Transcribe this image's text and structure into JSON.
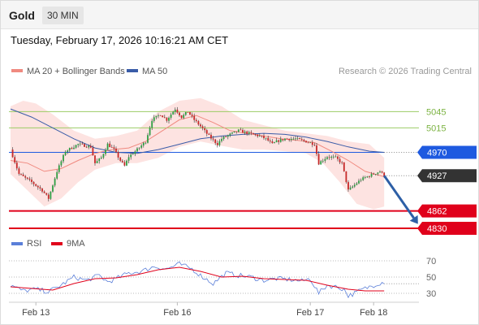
{
  "header": {
    "title": "Gold",
    "timeframe": "30 MIN"
  },
  "datetime": "Tuesday, February 17, 2026 10:16:21 AM CET",
  "legend": {
    "ma20": "MA 20 + Bollinger Bands",
    "ma50": "MA 50",
    "credit": "Research © 2026 Trading Central",
    "rsi": "RSI",
    "nine_ma": "9MA"
  },
  "colors": {
    "ma20": "#f08a80",
    "ma50": "#3a5ca8",
    "bollinger_fill": "#fde3e1",
    "candle_up": "#2e9e43",
    "candle_down": "#c62828",
    "support": "#e0001b",
    "pivot": "#1e5ae0",
    "resistance": "#9ccc65",
    "current_price": "#333333",
    "arrow": "#2d5fa6",
    "rsi": "#5b7fd9",
    "rsi_ma": "#e0001b"
  },
  "chart_data": [
    {
      "type": "candlestick",
      "title": "Gold",
      "timeframe": "30 MIN",
      "ylim": [
        4815,
        5095
      ],
      "x_labels": [
        "Feb 13",
        "Feb 16",
        "Feb 17",
        "Feb 18"
      ],
      "x_label_index": [
        12,
        79,
        142,
        172
      ],
      "series_names": [
        "MA 20 + Bollinger Bands",
        "MA 50"
      ],
      "levels": [
        {
          "label": "5045",
          "value": 5045,
          "kind": "resistance"
        },
        {
          "label": "5015",
          "value": 5015,
          "kind": "resistance"
        },
        {
          "label": "4970",
          "value": 4970,
          "kind": "pivot"
        },
        {
          "label": "4927",
          "value": 4927,
          "kind": "current"
        },
        {
          "label": "4862",
          "value": 4862,
          "kind": "support"
        },
        {
          "label": "4830",
          "value": 4830,
          "kind": "support"
        }
      ],
      "forecast_arrow": {
        "from_index": 177,
        "from": 4927,
        "to_index": 193,
        "to": 4838
      },
      "close_path": [
        [
          0,
          4975
        ],
        [
          4,
          4930
        ],
        [
          10,
          4915
        ],
        [
          15,
          4900
        ],
        [
          18,
          4885
        ],
        [
          22,
          4935
        ],
        [
          26,
          4972
        ],
        [
          32,
          4985
        ],
        [
          38,
          4980
        ],
        [
          40,
          4950
        ],
        [
          43,
          4960
        ],
        [
          46,
          4985
        ],
        [
          49,
          4975
        ],
        [
          52,
          4955
        ],
        [
          54,
          4945
        ],
        [
          56,
          4962
        ],
        [
          60,
          4975
        ],
        [
          64,
          4990
        ],
        [
          67,
          5030
        ],
        [
          71,
          5040
        ],
        [
          74,
          5030
        ],
        [
          78,
          5050
        ],
        [
          81,
          5035
        ],
        [
          84,
          5045
        ],
        [
          87,
          5030
        ],
        [
          90,
          5018
        ],
        [
          94,
          5000
        ],
        [
          98,
          4985
        ],
        [
          100,
          4995
        ],
        [
          104,
          5003
        ],
        [
          108,
          5010
        ],
        [
          113,
          5005
        ],
        [
          118,
          5000
        ],
        [
          121,
          4995
        ],
        [
          124,
          4985
        ],
        [
          126,
          4990
        ],
        [
          130,
          4995
        ],
        [
          135,
          4995
        ],
        [
          140,
          4990
        ],
        [
          144,
          4985
        ],
        [
          146,
          4950
        ],
        [
          150,
          4962
        ],
        [
          154,
          4960
        ],
        [
          157,
          4950
        ],
        [
          160,
          4900
        ],
        [
          163,
          4910
        ],
        [
          166,
          4920
        ],
        [
          170,
          4927
        ],
        [
          175,
          4935
        ],
        [
          177,
          4927
        ]
      ],
      "ma20_path": [
        [
          0,
          4955
        ],
        [
          8,
          4950
        ],
        [
          16,
          4935
        ],
        [
          24,
          4940
        ],
        [
          32,
          4955
        ],
        [
          40,
          4968
        ],
        [
          48,
          4975
        ],
        [
          56,
          4978
        ],
        [
          64,
          4990
        ],
        [
          72,
          5010
        ],
        [
          80,
          5030
        ],
        [
          88,
          5038
        ],
        [
          96,
          5025
        ],
        [
          104,
          5010
        ],
        [
          112,
          5005
        ],
        [
          120,
          5000
        ],
        [
          128,
          4995
        ],
        [
          136,
          4992
        ],
        [
          144,
          4988
        ],
        [
          152,
          4972
        ],
        [
          160,
          4955
        ],
        [
          168,
          4935
        ],
        [
          177,
          4925
        ]
      ],
      "bb_upper": [
        [
          0,
          5055
        ],
        [
          6,
          5065
        ],
        [
          12,
          5060
        ],
        [
          20,
          5040
        ],
        [
          30,
          5010
        ],
        [
          40,
          4995
        ],
        [
          50,
          5000
        ],
        [
          60,
          5010
        ],
        [
          70,
          5045
        ],
        [
          80,
          5065
        ],
        [
          90,
          5070
        ],
        [
          100,
          5055
        ],
        [
          110,
          5030
        ],
        [
          120,
          5020
        ],
        [
          130,
          5010
        ],
        [
          140,
          5005
        ],
        [
          150,
          5000
        ],
        [
          160,
          4990
        ],
        [
          170,
          4985
        ],
        [
          177,
          4960
        ]
      ],
      "bb_lower": [
        [
          0,
          4930
        ],
        [
          8,
          4900
        ],
        [
          16,
          4870
        ],
        [
          24,
          4885
        ],
        [
          32,
          4915
        ],
        [
          40,
          4938
        ],
        [
          50,
          4950
        ],
        [
          60,
          4950
        ],
        [
          70,
          4960
        ],
        [
          80,
          4980
        ],
        [
          90,
          4990
        ],
        [
          100,
          4982
        ],
        [
          110,
          4975
        ],
        [
          120,
          4975
        ],
        [
          130,
          4972
        ],
        [
          140,
          4968
        ],
        [
          148,
          4950
        ],
        [
          156,
          4915
        ],
        [
          164,
          4875
        ],
        [
          172,
          4865
        ],
        [
          177,
          4870
        ]
      ],
      "ma50_path": [
        [
          0,
          5050
        ],
        [
          10,
          5035
        ],
        [
          20,
          5015
        ],
        [
          30,
          4995
        ],
        [
          40,
          4978
        ],
        [
          50,
          4970
        ],
        [
          60,
          4968
        ],
        [
          70,
          4975
        ],
        [
          80,
          4985
        ],
        [
          90,
          4995
        ],
        [
          100,
          5000
        ],
        [
          110,
          5003
        ],
        [
          120,
          5005
        ],
        [
          130,
          5003
        ],
        [
          140,
          4998
        ],
        [
          150,
          4990
        ],
        [
          160,
          4980
        ],
        [
          170,
          4972
        ],
        [
          177,
          4970
        ]
      ]
    },
    {
      "type": "line",
      "title": "RSI",
      "series_names": [
        "RSI",
        "9MA"
      ],
      "ylim": [
        20,
        80
      ],
      "y_ticks": [
        70,
        50,
        30
      ],
      "rsi_path": [
        [
          0,
          40
        ],
        [
          6,
          33
        ],
        [
          12,
          35
        ],
        [
          18,
          32
        ],
        [
          24,
          40
        ],
        [
          30,
          50
        ],
        [
          36,
          46
        ],
        [
          42,
          52
        ],
        [
          46,
          44
        ],
        [
          50,
          48
        ],
        [
          56,
          55
        ],
        [
          62,
          57
        ],
        [
          68,
          63
        ],
        [
          74,
          60
        ],
        [
          80,
          66
        ],
        [
          86,
          60
        ],
        [
          90,
          52
        ],
        [
          96,
          42
        ],
        [
          102,
          55
        ],
        [
          108,
          52
        ],
        [
          114,
          50
        ],
        [
          120,
          46
        ],
        [
          126,
          48
        ],
        [
          132,
          47
        ],
        [
          138,
          45
        ],
        [
          142,
          48
        ],
        [
          146,
          30
        ],
        [
          150,
          40
        ],
        [
          154,
          38
        ],
        [
          158,
          35
        ],
        [
          160,
          27
        ],
        [
          163,
          30
        ],
        [
          166,
          34
        ],
        [
          170,
          38
        ],
        [
          174,
          42
        ],
        [
          177,
          44
        ]
      ],
      "ma9_path": [
        [
          0,
          38
        ],
        [
          10,
          36
        ],
        [
          20,
          34
        ],
        [
          30,
          42
        ],
        [
          40,
          48
        ],
        [
          50,
          49
        ],
        [
          60,
          53
        ],
        [
          70,
          59
        ],
        [
          80,
          62
        ],
        [
          90,
          57
        ],
        [
          100,
          50
        ],
        [
          110,
          51
        ],
        [
          120,
          48
        ],
        [
          130,
          47
        ],
        [
          140,
          46
        ],
        [
          150,
          40
        ],
        [
          160,
          35
        ],
        [
          168,
          33
        ],
        [
          177,
          33
        ]
      ]
    }
  ]
}
